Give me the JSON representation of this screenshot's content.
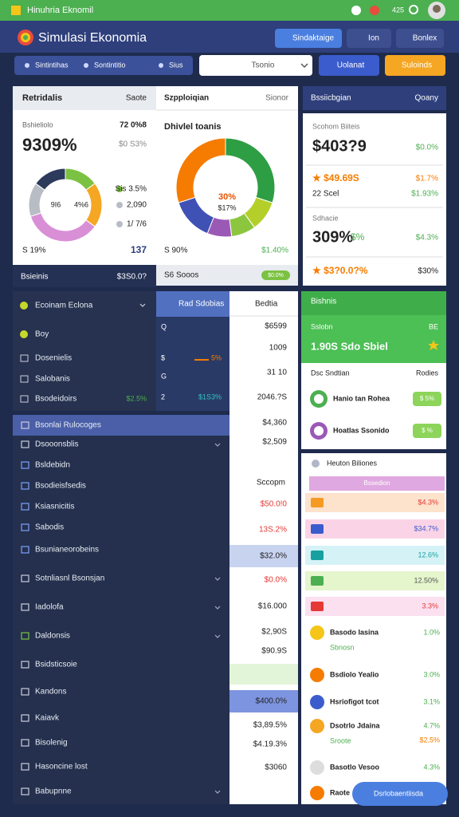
{
  "status_bar": {
    "title": "Hinuhria Eknomil",
    "badge": "425"
  },
  "header": {
    "title": "Simulasi Ekonomia",
    "buttons": [
      "Sindaktaige",
      "Ion",
      "Bonlex"
    ]
  },
  "toolbar": {
    "tabs": [
      "Sintintihas",
      "Sontintitio",
      "Sius"
    ],
    "select": "Tsonio",
    "buttons": [
      "Uolanat",
      "Suloinds"
    ]
  },
  "panel_overview": {
    "title": "Retridalis",
    "action": "Saote",
    "label": "Bshieliolo",
    "label_value": "72 0%8",
    "big_value": "9309%",
    "sub_value": "$0 S3%",
    "donut": {
      "values": [
        15,
        20,
        35,
        15,
        15
      ],
      "colors": [
        "#7cc242",
        "#f5a623",
        "#d98fd6",
        "#b8bcc4",
        "#2c3a5c"
      ]
    },
    "donut_labels": [
      "9I6",
      "4%6"
    ],
    "legend": [
      "Sis 3.5%",
      "2,090",
      "1/ 7/6"
    ],
    "footer": [
      "S 19%",
      "137"
    ],
    "bar": [
      "Bsieinis",
      "$3S0.0?"
    ]
  },
  "panel_distribution": {
    "title": "Szpploiqian",
    "action": "Sionor",
    "subtitle": "Dhivlel toanis",
    "donut": {
      "values": [
        30,
        10,
        8,
        8,
        14,
        30
      ],
      "colors": [
        "#2e9e44",
        "#b5cf2a",
        "#8cc63f",
        "#9b59b6",
        "#3f51b5",
        "#f57c00"
      ]
    },
    "donut_labels": [
      "30%",
      "$17%"
    ],
    "footer": [
      "S 90%",
      "$1.40%"
    ],
    "bar": [
      "S6 Sooos",
      "$0.0%"
    ]
  },
  "panel_budget": {
    "title": "Bssiicbgian",
    "action": "Qoany",
    "label": "Scohom Biiteis",
    "big_value": "$403?9",
    "big_change": "$0.0%",
    "star_value": "★ $49.69S",
    "star_change": "$1.7%",
    "note": "22 Scel",
    "note_change": "$1.93%",
    "label2": "Sdhacie",
    "big_value2": "309%",
    "big_unit2": "$%",
    "big_change2": "$4.3%",
    "star_value2": "★ $3?0.0?%",
    "star_change2": "$30%"
  },
  "menu": {
    "items": [
      "Ecoinam Eclona",
      "Boy",
      "Dosenielis",
      "Salobanis",
      "Bsodeidoirs"
    ],
    "value": "$2.5%"
  },
  "submenu": {
    "title": "Rad Sdobias",
    "rows": [
      "Q",
      "$",
      "G",
      "2"
    ],
    "values": [
      "5%",
      "$1S3%"
    ]
  },
  "ledger": {
    "header": "Bedtia",
    "rows": [
      "$6599",
      "1009",
      "31 10",
      "2046.?S",
      "$4,360",
      "$2,509"
    ],
    "section": "Sccopm",
    "rows2": [
      "$50.0!0",
      "13S.2%",
      "$32.0%",
      "$0.0%",
      "$16.000",
      "$2,90S",
      "$90.9S",
      "$400.0%",
      "$3,89.5%",
      "$4.19.3%",
      "$3060"
    ]
  },
  "nav": [
    "Bsonlai Rulocoges",
    "Dsooonsblis",
    "Bsldebidn",
    "Bsodieisfsedis",
    "Ksiasnicitis",
    "Sabodis",
    "Bsunianeorobeins",
    "Sotnliasnl Bsonsjan",
    "Iadolofa",
    "Daldonsis",
    "Bsidsticsoie",
    "Kandons",
    "Kaiavk",
    "Bisolenig",
    "Hasoncine lost",
    "Babupnne"
  ],
  "summary": {
    "title": "Bishnis",
    "label": "Sslobn",
    "code": "BE",
    "value": "1.90S Sdo Sbiel",
    "subtitle": "Dsc Sndtian",
    "action": "Rodies",
    "rows": [
      {
        "name": "Hanio tan Rohea",
        "badge": "$ 5%"
      },
      {
        "name": "Hoatlas Ssonido",
        "badge": "$ %"
      }
    ]
  },
  "activity": {
    "title": "Heuton Biliones",
    "bar_label": "Bssedion",
    "rows": [
      "$4.3%",
      "$34.7%",
      "12.6%",
      "12.50%",
      "3.3%"
    ],
    "items": [
      {
        "name": "Basodo Iasina",
        "sub": "Sbnosn",
        "value": "1.0%"
      },
      {
        "name": "Bsdiolo Yealio",
        "value": "3.0%"
      },
      {
        "name": "Hsriofigot tcot",
        "value": "3.1%"
      },
      {
        "name": "Dsotrlo Jdaina",
        "sub": "Sroote",
        "value": "4.7%",
        "value2": "$2.5%"
      },
      {
        "name": "Basotlo Vesoo",
        "value": "4.3%"
      },
      {
        "name": "Raote"
      }
    ]
  },
  "fab": "Dsrlobaentiisda"
}
